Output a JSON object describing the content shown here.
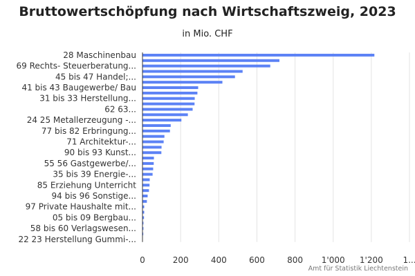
{
  "chart_data": {
    "type": "bar",
    "orientation": "horizontal",
    "title": "Bruttowertschöpfung nach Wirtschaftszweig, 2023",
    "subtitle": "in Mio. CHF",
    "source": "Amt für Statistik Liechtenstein",
    "xlim": [
      0,
      1400
    ],
    "xticks": [
      "0",
      "200",
      "400",
      "600",
      "800",
      "1'000",
      "1'200",
      "1..."
    ],
    "xtick_values": [
      0,
      200,
      400,
      600,
      800,
      1000,
      1200,
      1400
    ],
    "grid": true,
    "bar_color": "#5c82f5",
    "categories": [
      "28 Maschinenbau",
      "",
      "69 Rechts- Steuerberatung...",
      "",
      "45 bis 47 Handel;...",
      "",
      "41 bis 43 Baugewerbe/ Bau",
      "",
      "31 bis 33 Herstellung...",
      "",
      "62 63...",
      "",
      "24 25 Metallerzeugung -...",
      "",
      "77 bis 82 Erbringung...",
      "",
      "71 Architektur-...",
      "",
      "90 bis 93 Kunst...",
      "",
      "55 56 Gastgewerbe/...",
      "",
      "35 bis 39 Energie-...",
      "",
      "85 Erziehung Unterricht",
      "",
      "94 bis 96 Sonstige...",
      "",
      "97 Private Haushalte mit...",
      "",
      "05 bis 09 Bergbau...",
      "",
      "58 bis 60 Verlagswesen...",
      "",
      "22 23 Herstellung Gummi-..."
    ],
    "values": [
      1216,
      718,
      670,
      525,
      485,
      419,
      292,
      288,
      274,
      273,
      263,
      238,
      204,
      148,
      144,
      115,
      111,
      100,
      99,
      60,
      59,
      56,
      53,
      38,
      37,
      34,
      27,
      23,
      9,
      9,
      8,
      5,
      5,
      4,
      0.5
    ]
  }
}
